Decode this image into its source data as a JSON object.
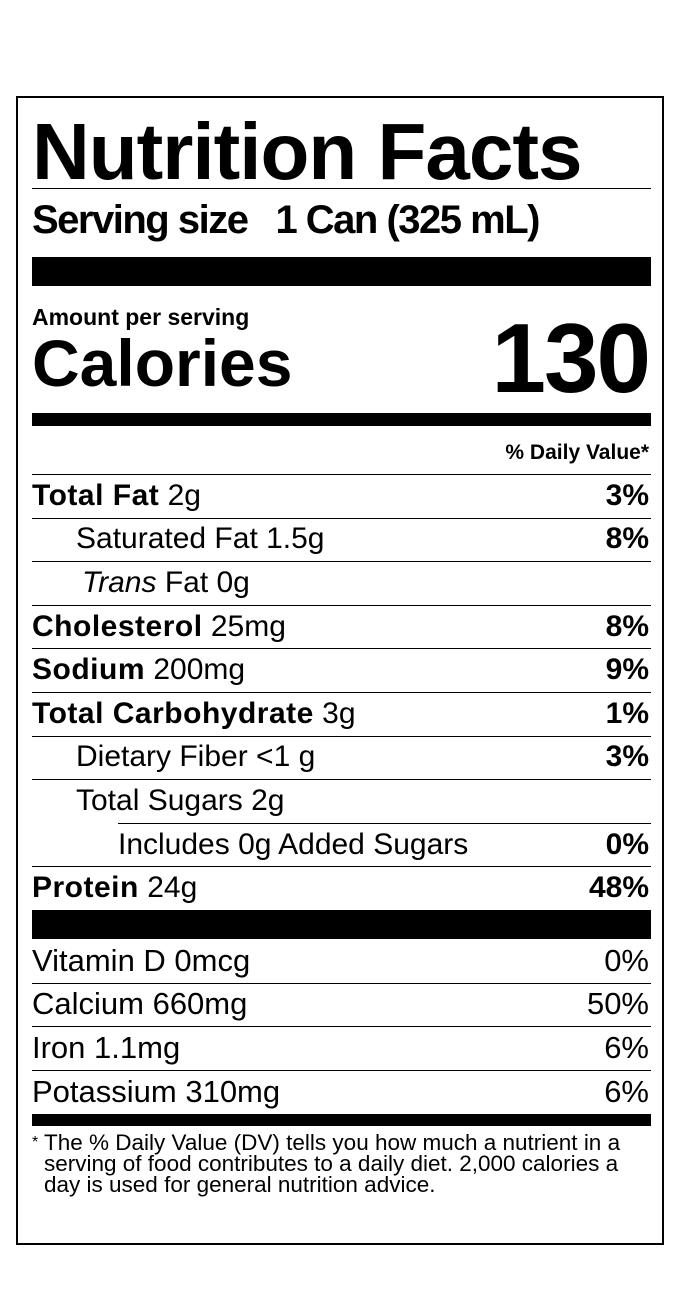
{
  "title": "Nutrition Facts",
  "serving": {
    "label": "Serving size",
    "value": "1 Can (325 mL)"
  },
  "calories": {
    "amount_label": "Amount per serving",
    "label": "Calories",
    "value": "130"
  },
  "daily_value_header": "% Daily Value*",
  "nutrients": [
    {
      "name": "Total Fat",
      "amount": "2g",
      "dv": "3%"
    },
    {
      "name": "Saturated Fat 1.5g",
      "dv": "8%"
    },
    {
      "name_italic": "Trans",
      "name": "Fat 0g",
      "dv": ""
    },
    {
      "name": "Cholesterol",
      "amount": "25mg",
      "dv": "8%"
    },
    {
      "name": "Sodium",
      "amount": "200mg",
      "dv": "9%"
    },
    {
      "name": "Total Carbohydrate",
      "amount": "3g",
      "dv": "1%"
    },
    {
      "name": "Dietary Fiber <1 g",
      "dv": "3%"
    },
    {
      "name": "Total Sugars 2g",
      "dv": ""
    },
    {
      "name": "Includes 0g Added Sugars",
      "dv": "0%"
    },
    {
      "name": "Protein",
      "amount": "24g",
      "dv": "48%"
    }
  ],
  "vitamins": [
    {
      "name": "Vitamin D 0mcg",
      "dv": "0%"
    },
    {
      "name": "Calcium 660mg",
      "dv": "50%"
    },
    {
      "name": "Iron 1.1mg",
      "dv": "6%"
    },
    {
      "name": "Potassium 310mg",
      "dv": "6%"
    }
  ],
  "footnote": {
    "asterisk": "*",
    "text": "The % Daily Value (DV) tells you how much a nutrient in a serving of food contributes to a daily diet. 2,000 calories a day is used for general nutrition advice."
  }
}
